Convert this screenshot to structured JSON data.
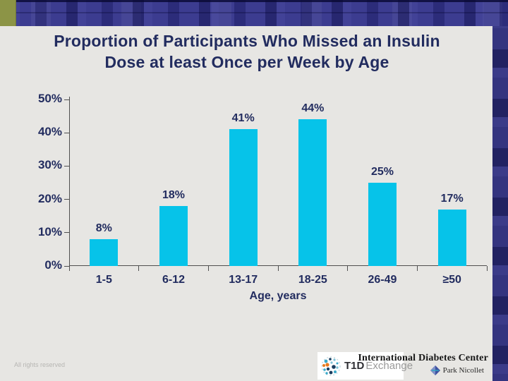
{
  "slide": {
    "title_line1": "Proportion of Participants Who Missed an Insulin",
    "title_line2": "Dose at least Once per Week by Age"
  },
  "chart_data": {
    "type": "bar",
    "title": "Proportion of Participants Who Missed an Insulin Dose at least Once per Week by Age",
    "categories": [
      "1-5",
      "6-12",
      "13-17",
      "18-25",
      "26-49",
      "≥50"
    ],
    "values": [
      8,
      18,
      41,
      44,
      25,
      17
    ],
    "value_labels": [
      "8%",
      "18%",
      "41%",
      "44%",
      "25%",
      "17%"
    ],
    "xlabel": "Age, years",
    "ylabel": "",
    "ylim": [
      0,
      50
    ],
    "ytick_step": 10,
    "ytick_labels": [
      "0%",
      "10%",
      "20%",
      "30%",
      "40%",
      "50%"
    ],
    "grid": false,
    "legend": null,
    "bar_color": "#06c3e9"
  },
  "footer": {
    "rights_text": "All rights reserved",
    "t1d_bold": "T1D",
    "t1d_light": "Exchange",
    "idc_name": "International Diabetes Center",
    "park_name": "Park Nicollet"
  },
  "colors": {
    "background": "#e7e6e3",
    "header_navy": "#3c3c90",
    "accent_olive": "#8c9446",
    "text_navy": "#222c5f",
    "bar_cyan": "#06c3e9",
    "axis_gray": "#4f4f4f"
  }
}
